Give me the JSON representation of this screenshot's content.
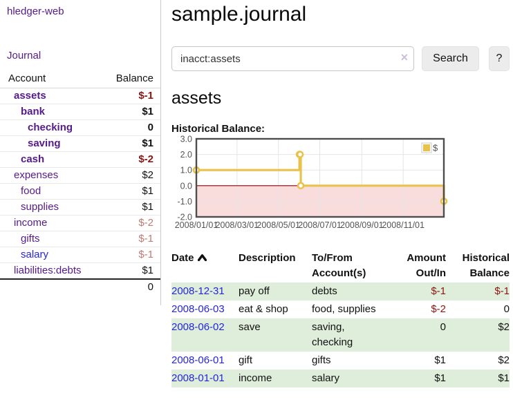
{
  "app": {
    "brand": "hledger-web"
  },
  "nav": {
    "journal": "Journal"
  },
  "sidebar": {
    "columns": {
      "account": "Account",
      "balance": "Balance"
    },
    "accounts": [
      {
        "name": "assets",
        "depth": 0,
        "bold": true,
        "link_color": "purple",
        "balance": "$-1",
        "balance_class": "neg-strong"
      },
      {
        "name": "bank",
        "depth": 1,
        "bold": true,
        "link_color": "purple",
        "balance": "$1",
        "balance_class": ""
      },
      {
        "name": "checking",
        "depth": 2,
        "bold": true,
        "link_color": "purple",
        "balance": "0",
        "balance_class": ""
      },
      {
        "name": "saving",
        "depth": 2,
        "bold": true,
        "link_color": "purple",
        "balance": "$1",
        "balance_class": ""
      },
      {
        "name": "cash",
        "depth": 1,
        "bold": true,
        "link_color": "purple",
        "balance": "$-2",
        "balance_class": "neg-strong"
      },
      {
        "name": "expenses",
        "depth": 0,
        "bold": false,
        "link_color": "purple",
        "balance": "$2",
        "balance_class": ""
      },
      {
        "name": "food",
        "depth": 1,
        "bold": false,
        "link_color": "purple",
        "balance": "$1",
        "balance_class": ""
      },
      {
        "name": "supplies",
        "depth": 1,
        "bold": false,
        "link_color": "purple",
        "balance": "$1",
        "balance_class": ""
      },
      {
        "name": "income",
        "depth": 0,
        "bold": false,
        "link_color": "purple",
        "balance": "$-2",
        "balance_class": "neg-soft"
      },
      {
        "name": "gifts",
        "depth": 1,
        "bold": false,
        "link_color": "purple",
        "balance": "$-1",
        "balance_class": "neg-soft"
      },
      {
        "name": "salary",
        "depth": 1,
        "bold": false,
        "link_color": "blue",
        "balance": "$-1",
        "balance_class": "neg-soft"
      },
      {
        "name": "liabilities:debts",
        "depth": 0,
        "bold": false,
        "link_color": "purple",
        "balance": "$1",
        "balance_class": ""
      }
    ],
    "total": "0"
  },
  "header": {
    "title": "sample.journal"
  },
  "search": {
    "value": "inacct:assets",
    "clear_icon": "×",
    "button": "Search",
    "help_button": "?"
  },
  "account_page": {
    "heading": "assets",
    "chart_label": "Historical Balance:"
  },
  "chart_data": {
    "type": "line",
    "step": true,
    "title": "Historical Balance",
    "series": [
      {
        "name": "$",
        "color": "#e9c24a",
        "points": [
          [
            "2008-01-01",
            1
          ],
          [
            "2008-06-01",
            2
          ],
          [
            "2008-06-02",
            2
          ],
          [
            "2008-06-03",
            0
          ],
          [
            "2008-12-31",
            -1
          ]
        ]
      }
    ],
    "xlim": [
      "2008-01-01",
      "2008-12-31"
    ],
    "ylim": [
      -2,
      3
    ],
    "y_ticks": [
      3.0,
      2.0,
      1.0,
      0.0,
      -1.0,
      -2.0
    ],
    "x_ticks": [
      "2008/01/01",
      "2008/03/01",
      "2008/05/01",
      "2008/07/01",
      "2008/09/01",
      "2008/11/01"
    ],
    "grid": true,
    "legend_position": "top-right",
    "negative_region_color": "#f9dcdc",
    "zero_line_color": "#8b0000",
    "border_color": "#4d4d4d",
    "grid_color": "#e5e5e5",
    "tick_label_color": "#545454"
  },
  "register": {
    "columns": [
      "Date",
      "Description",
      "To/From Account(s)",
      "Amount Out/In",
      "Historical Balance"
    ],
    "sort_icon": "chevron-up",
    "rows": [
      {
        "date": "2008-12-31",
        "description": "pay off",
        "accounts": "debts",
        "amount": "$-1",
        "amount_neg": true,
        "balance": "$-1",
        "balance_neg": true,
        "shaded": true
      },
      {
        "date": "2008-06-03",
        "description": "eat & shop",
        "accounts": "food, supplies",
        "amount": "$-2",
        "amount_neg": true,
        "balance": "0",
        "balance_neg": false,
        "shaded": false
      },
      {
        "date": "2008-06-02",
        "description": "save",
        "accounts": "saving, checking",
        "amount": "0",
        "amount_neg": false,
        "balance": "$2",
        "balance_neg": false,
        "shaded": true
      },
      {
        "date": "2008-06-01",
        "description": "gift",
        "accounts": "gifts",
        "amount": "$1",
        "amount_neg": false,
        "balance": "$2",
        "balance_neg": false,
        "shaded": false
      },
      {
        "date": "2008-01-01",
        "description": "income",
        "accounts": "salary",
        "amount": "$1",
        "amount_neg": false,
        "balance": "$1",
        "balance_neg": false,
        "shaded": true
      }
    ]
  }
}
